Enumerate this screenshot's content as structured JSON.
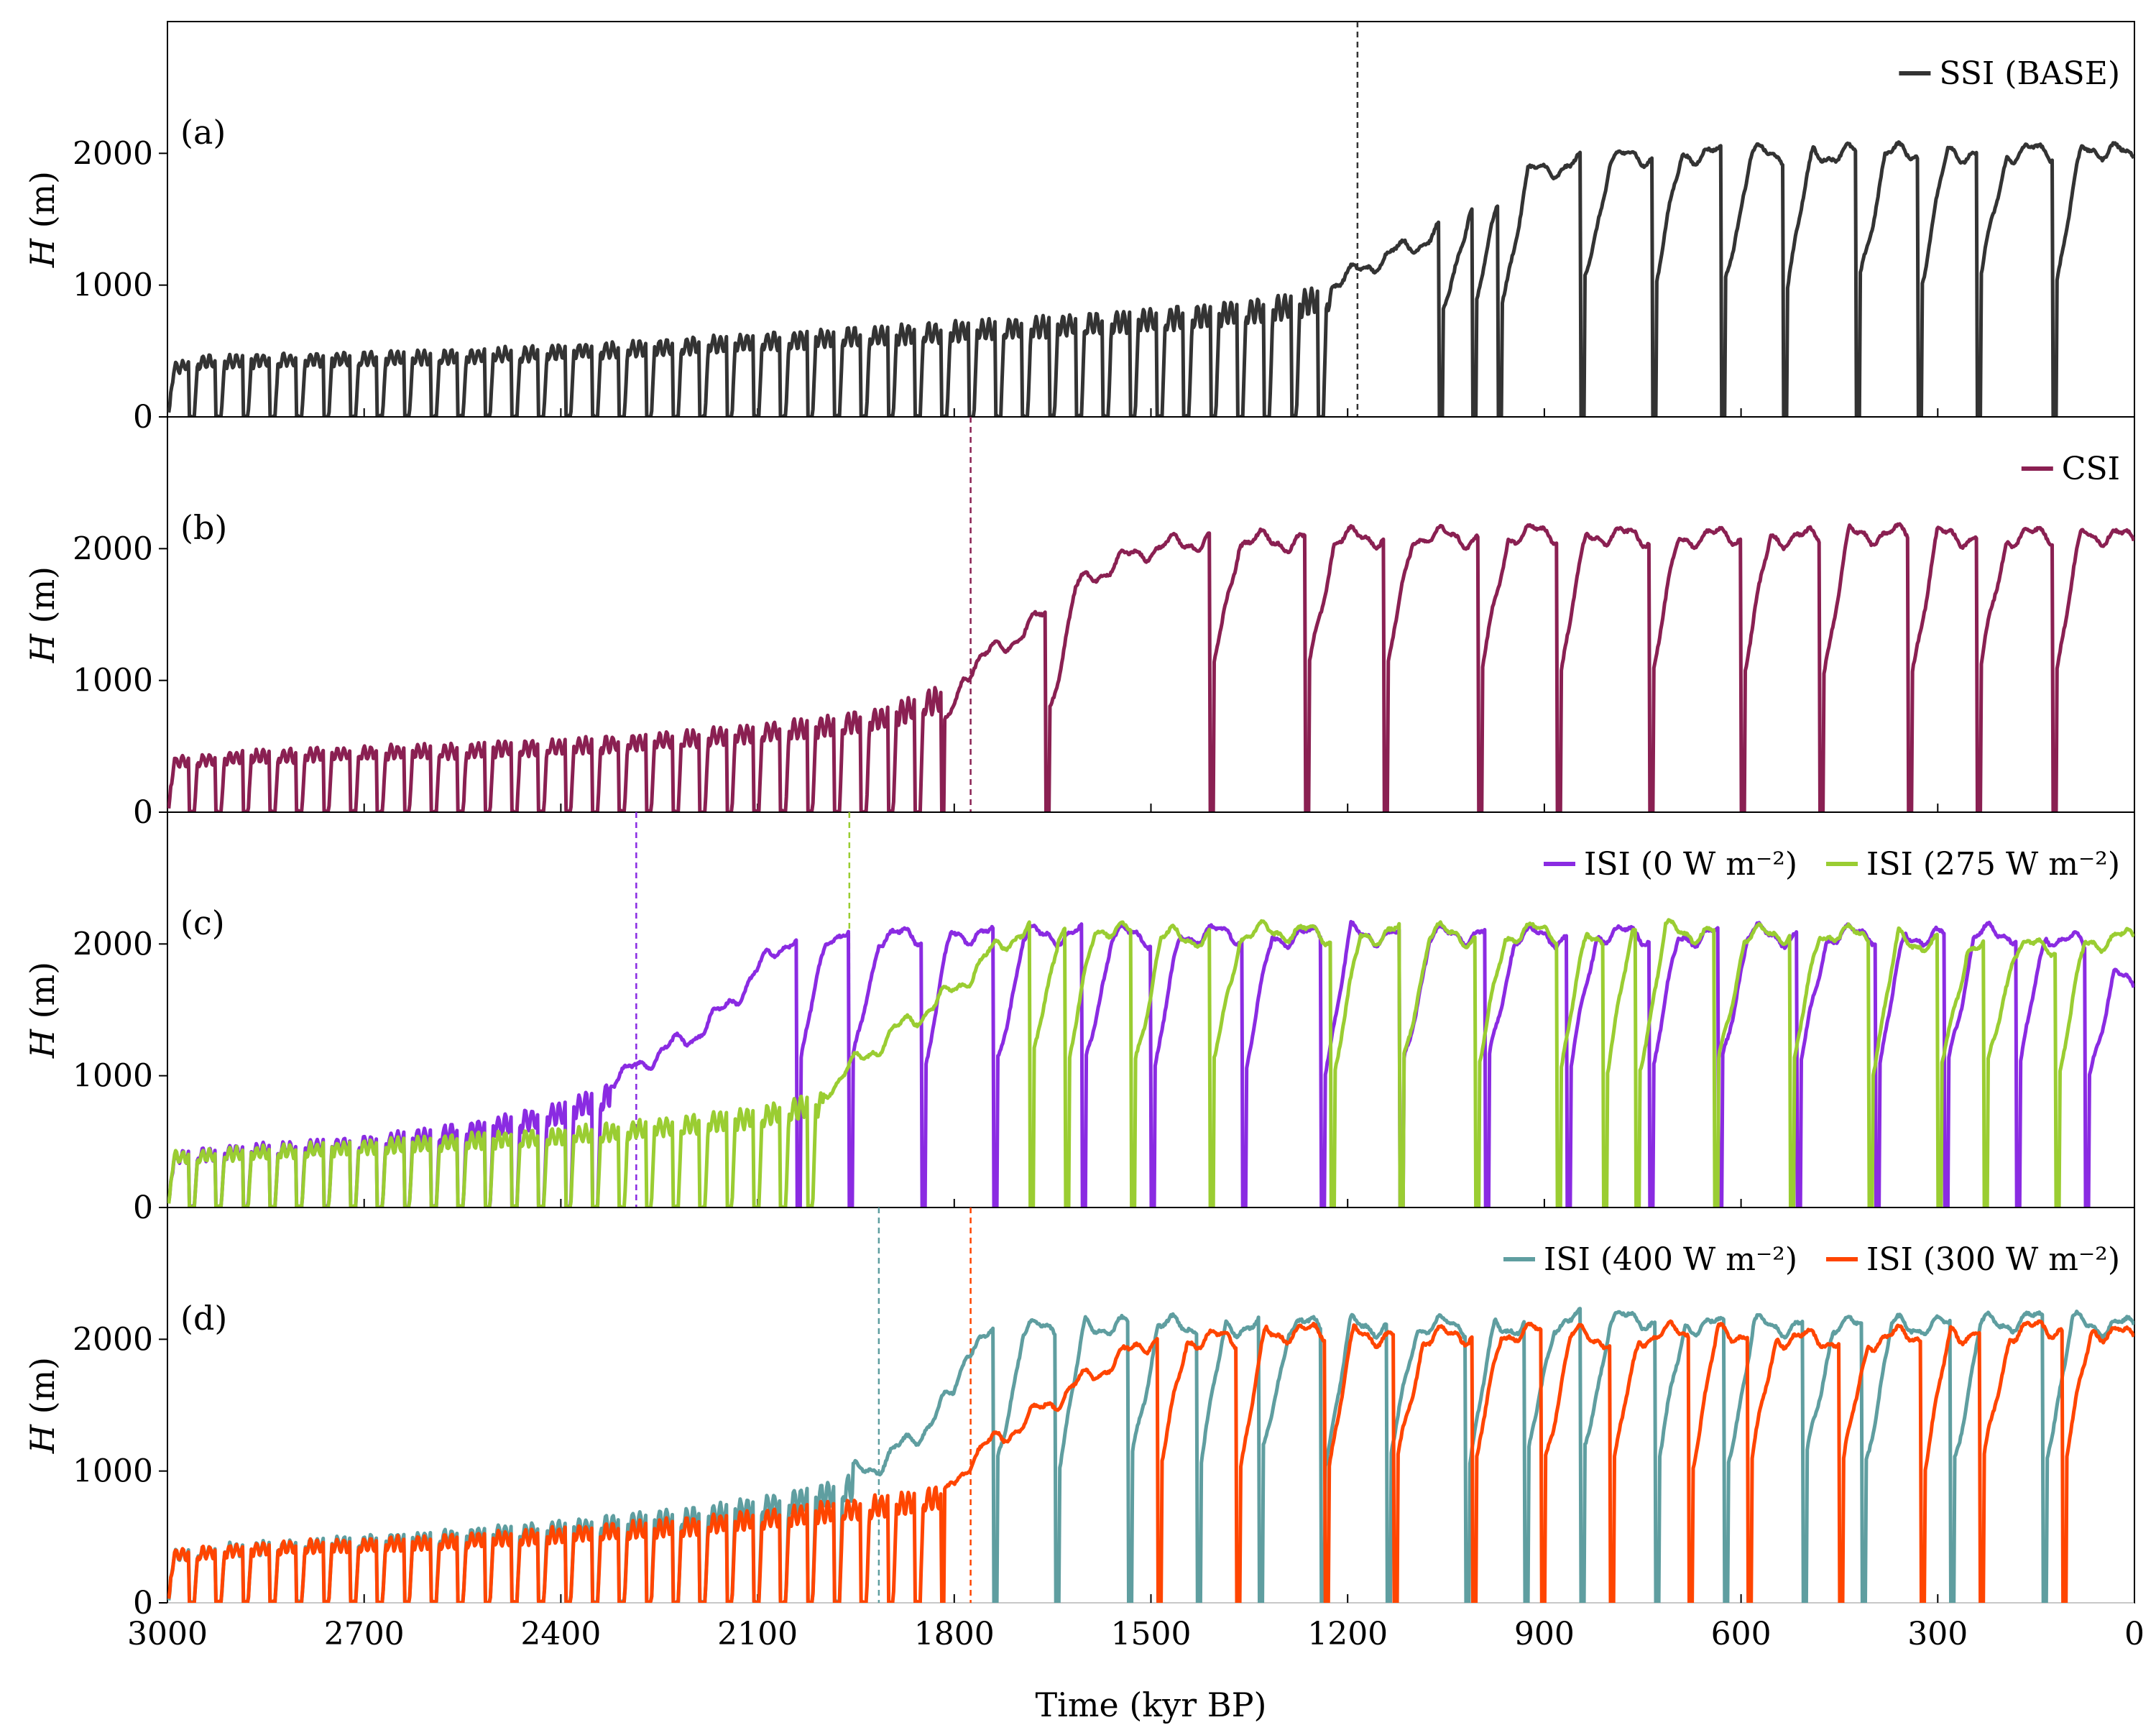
{
  "figure": {
    "xlabel": "Time (kyr BP)",
    "x_ticks": [
      "3000",
      "2700",
      "2400",
      "2100",
      "1800",
      "1500",
      "1200",
      "900",
      "600",
      "300",
      "0"
    ],
    "x_tick_values": [
      3000,
      2700,
      2400,
      2100,
      1800,
      1500,
      1200,
      900,
      600,
      300,
      0
    ],
    "xlim": [
      3000,
      0
    ],
    "y_ticks": [
      "0",
      "1000",
      "2000"
    ],
    "y_tick_values": [
      0,
      1000,
      2000
    ],
    "ylim": [
      0,
      3000
    ],
    "ylabel_italic": "H",
    "ylabel_rest": " (m)"
  },
  "chart_data": [
    {
      "type": "line",
      "panel": "(a)",
      "xlabel": "",
      "ylabel": "H (m)",
      "xlim": [
        3000,
        0
      ],
      "ylim": [
        0,
        3000
      ],
      "transition_markers": [
        {
          "x": 1185,
          "color": "#333333"
        }
      ],
      "series": [
        {
          "name": "SSI (BASE)",
          "color": "#333333",
          "points": [
            [
              3000,
              0
            ],
            [
              2990,
              400
            ],
            [
              2960,
              460
            ],
            [
              2900,
              470
            ],
            [
              2800,
              480
            ],
            [
              2700,
              490
            ],
            [
              2600,
              500
            ],
            [
              2500,
              520
            ],
            [
              2400,
              550
            ],
            [
              2300,
              570
            ],
            [
              2200,
              600
            ],
            [
              2100,
              630
            ],
            [
              2000,
              660
            ],
            [
              1900,
              690
            ],
            [
              1800,
              720
            ],
            [
              1700,
              750
            ],
            [
              1600,
              780
            ],
            [
              1500,
              820
            ],
            [
              1400,
              860
            ],
            [
              1300,
              920
            ],
            [
              1250,
              980
            ],
            [
              1200,
              1050
            ],
            [
              1185,
              1100
            ],
            [
              1150,
              1200
            ],
            [
              1100,
              1300
            ],
            [
              1050,
              1450
            ],
            [
              1000,
              1650
            ],
            [
              950,
              1780
            ],
            [
              900,
              1880
            ],
            [
              800,
              1950
            ],
            [
              700,
              2000
            ],
            [
              600,
              1980
            ],
            [
              500,
              2000
            ],
            [
              400,
              1990
            ],
            [
              300,
              2010
            ],
            [
              200,
              2000
            ],
            [
              100,
              2020
            ],
            [
              30,
              2040
            ],
            [
              10,
              1950
            ],
            [
              0,
              1950
            ]
          ],
          "terminations": [
            1060,
            1010,
            970,
            845,
            735,
            630,
            535,
            425,
            330,
            240,
            125
          ]
        }
      ]
    },
    {
      "type": "line",
      "panel": "(b)",
      "xlabel": "",
      "ylabel": "H (m)",
      "xlim": [
        3000,
        0
      ],
      "ylim": [
        0,
        3000
      ],
      "transition_markers": [
        {
          "x": 1775,
          "color": "#8a2052"
        }
      ],
      "series": [
        {
          "name": "CSI",
          "color": "#8a2052",
          "points": [
            [
              3000,
              0
            ],
            [
              2990,
              420
            ],
            [
              2900,
              460
            ],
            [
              2800,
              480
            ],
            [
              2700,
              500
            ],
            [
              2600,
              510
            ],
            [
              2500,
              530
            ],
            [
              2400,
              550
            ],
            [
              2300,
              580
            ],
            [
              2200,
              620
            ],
            [
              2100,
              670
            ],
            [
              2000,
              720
            ],
            [
              1900,
              800
            ],
            [
              1850,
              900
            ],
            [
              1800,
              1000
            ],
            [
              1775,
              1100
            ],
            [
              1700,
              1350
            ],
            [
              1650,
              1550
            ],
            [
              1600,
              1750
            ],
            [
              1550,
              1900
            ],
            [
              1500,
              2000
            ],
            [
              1400,
              2080
            ],
            [
              1300,
              2050
            ],
            [
              1200,
              2080
            ],
            [
              1100,
              2100
            ],
            [
              1000,
              2080
            ],
            [
              900,
              2120
            ],
            [
              800,
              2100
            ],
            [
              700,
              2080
            ],
            [
              600,
              2100
            ],
            [
              500,
              2080
            ],
            [
              400,
              2110
            ],
            [
              300,
              2100
            ],
            [
              200,
              2080
            ],
            [
              100,
              2120
            ],
            [
              30,
              2100
            ],
            [
              0,
              2050
            ]
          ],
          "terminations": [
            1870,
            1830,
            1660,
            1410,
            1265,
            1145,
            1000,
            880,
            740,
            600,
            480,
            345,
            240,
            125,
            0
          ]
        }
      ]
    },
    {
      "type": "line",
      "panel": "(c)",
      "xlabel": "",
      "ylabel": "H (m)",
      "xlim": [
        3000,
        0
      ],
      "ylim": [
        0,
        3000
      ],
      "transition_markers": [
        {
          "x": 2285,
          "color": "#8a2be2"
        },
        {
          "x": 1960,
          "color": "#9acd32"
        }
      ],
      "series": [
        {
          "name": "ISI (0 W m⁻²)",
          "color": "#8a2be2",
          "points": [
            [
              3000,
              0
            ],
            [
              2990,
              420
            ],
            [
              2900,
              470
            ],
            [
              2800,
              500
            ],
            [
              2700,
              540
            ],
            [
              2600,
              600
            ],
            [
              2500,
              680
            ],
            [
              2400,
              800
            ],
            [
              2300,
              1000
            ],
            [
              2285,
              1080
            ],
            [
              2200,
              1300
            ],
            [
              2150,
              1500
            ],
            [
              2100,
              1800
            ],
            [
              2050,
              2050
            ],
            [
              2000,
              2080
            ],
            [
              1900,
              2050
            ],
            [
              1800,
              2080
            ],
            [
              1700,
              2050
            ],
            [
              1600,
              2080
            ],
            [
              1500,
              2050
            ],
            [
              1400,
              2080
            ],
            [
              1300,
              2050
            ],
            [
              1200,
              2080
            ],
            [
              1100,
              2050
            ],
            [
              1000,
              2080
            ],
            [
              900,
              2050
            ],
            [
              800,
              2080
            ],
            [
              700,
              2050
            ],
            [
              600,
              2080
            ],
            [
              500,
              2050
            ],
            [
              400,
              2080
            ],
            [
              300,
              2050
            ],
            [
              200,
              2080
            ],
            [
              100,
              2050
            ],
            [
              0,
              1650
            ]
          ],
          "terminations": [
            2040,
            1960,
            1850,
            1740,
            1605,
            1500,
            1360,
            1240,
            1120,
            990,
            865,
            740,
            635,
            515,
            395,
            290,
            180,
            75
          ]
        },
        {
          "name": "ISI (275 W m⁻²)",
          "color": "#9acd32",
          "points": [
            [
              3000,
              0
            ],
            [
              2990,
              420
            ],
            [
              2900,
              450
            ],
            [
              2800,
              480
            ],
            [
              2700,
              510
            ],
            [
              2600,
              540
            ],
            [
              2500,
              570
            ],
            [
              2400,
              600
            ],
            [
              2300,
              650
            ],
            [
              2200,
              700
            ],
            [
              2100,
              760
            ],
            [
              2000,
              880
            ],
            [
              1960,
              1050
            ],
            [
              1900,
              1300
            ],
            [
              1800,
              1650
            ],
            [
              1750,
              1900
            ],
            [
              1700,
              2100
            ],
            [
              1600,
              2150
            ],
            [
              1500,
              2050
            ],
            [
              1400,
              2050
            ],
            [
              1300,
              2100
            ],
            [
              1200,
              2050
            ],
            [
              1100,
              2100
            ],
            [
              1000,
              2050
            ],
            [
              900,
              2100
            ],
            [
              800,
              2050
            ],
            [
              700,
              2100
            ],
            [
              600,
              2050
            ],
            [
              500,
              2100
            ],
            [
              400,
              2050
            ],
            [
              300,
              2000
            ],
            [
              200,
              1950
            ],
            [
              100,
              2000
            ],
            [
              0,
              2050
            ]
          ],
          "terminations": [
            1685,
            1630,
            1530,
            1410,
            1225,
            1120,
            1005,
            880,
            810,
            760,
            640,
            525,
            405,
            300,
            230,
            120,
            0
          ]
        }
      ]
    },
    {
      "type": "line",
      "panel": "(d)",
      "xlabel": "Time (kyr BP)",
      "ylabel": "H (m)",
      "xlim": [
        3000,
        0
      ],
      "ylim": [
        0,
        3000
      ],
      "transition_markers": [
        {
          "x": 1915,
          "color": "#5f9ea0"
        },
        {
          "x": 1775,
          "color": "#ff4500"
        }
      ],
      "series": [
        {
          "name": "ISI (400 W m⁻²)",
          "color": "#5f9ea0",
          "points": [
            [
              3000,
              0
            ],
            [
              2990,
              400
            ],
            [
              2900,
              450
            ],
            [
              2800,
              480
            ],
            [
              2700,
              510
            ],
            [
              2600,
              540
            ],
            [
              2500,
              580
            ],
            [
              2400,
              620
            ],
            [
              2300,
              670
            ],
            [
              2200,
              720
            ],
            [
              2100,
              800
            ],
            [
              2000,
              900
            ],
            [
              1915,
              1050
            ],
            [
              1850,
              1300
            ],
            [
              1800,
              1600
            ],
            [
              1780,
              1950
            ],
            [
              1750,
              2000
            ],
            [
              1650,
              2100
            ],
            [
              1550,
              2100
            ],
            [
              1450,
              2100
            ],
            [
              1350,
              2100
            ],
            [
              1250,
              2100
            ],
            [
              1150,
              2100
            ],
            [
              1050,
              2100
            ],
            [
              950,
              2100
            ],
            [
              850,
              2150
            ],
            [
              750,
              2150
            ],
            [
              650,
              2100
            ],
            [
              550,
              2100
            ],
            [
              450,
              2100
            ],
            [
              350,
              2100
            ],
            [
              250,
              2100
            ],
            [
              150,
              2150
            ],
            [
              50,
              2100
            ],
            [
              0,
              2100
            ]
          ],
          "terminations": [
            1740,
            1645,
            1535,
            1430,
            1335,
            1240,
            1140,
            1020,
            930,
            845,
            730,
            625,
            505,
            415,
            280,
            140
          ]
        },
        {
          "name": "ISI (300 W m⁻²)",
          "color": "#ff4500",
          "points": [
            [
              3000,
              0
            ],
            [
              2990,
              400
            ],
            [
              2900,
              440
            ],
            [
              2800,
              470
            ],
            [
              2700,
              490
            ],
            [
              2600,
              510
            ],
            [
              2500,
              540
            ],
            [
              2400,
              570
            ],
            [
              2300,
              610
            ],
            [
              2200,
              650
            ],
            [
              2100,
              700
            ],
            [
              2000,
              760
            ],
            [
              1900,
              820
            ],
            [
              1800,
              900
            ],
            [
              1775,
              1100
            ],
            [
              1700,
              1350
            ],
            [
              1600,
              1700
            ],
            [
              1500,
              2000
            ],
            [
              1400,
              2000
            ],
            [
              1300,
              2050
            ],
            [
              1200,
              2050
            ],
            [
              1100,
              2000
            ],
            [
              1000,
              2050
            ],
            [
              900,
              2050
            ],
            [
              800,
              2000
            ],
            [
              700,
              2050
            ],
            [
              600,
              2050
            ],
            [
              500,
              2000
            ],
            [
              400,
              2000
            ],
            [
              300,
              2050
            ],
            [
              200,
              2050
            ],
            [
              100,
              2100
            ],
            [
              30,
              2050
            ],
            [
              0,
              2000
            ]
          ],
          "terminations": [
            1850,
            1490,
            1370,
            1235,
            1130,
            1010,
            905,
            800,
            680,
            590,
            450,
            325,
            235,
            110
          ]
        }
      ]
    }
  ]
}
